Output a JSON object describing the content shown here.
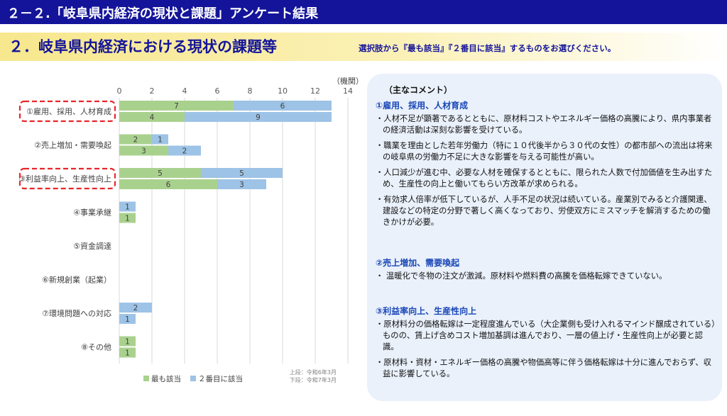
{
  "header": {
    "title": "２－２.「岐阜県内経済の現状と課題」アンケート結果",
    "subtitle": "２．岐阜県内経済における現状の課題等",
    "instruction": "選択肢から『最も該当』『２番目に該当』するものをお選びください。"
  },
  "chart_data": {
    "type": "bar",
    "orientation": "horizontal",
    "stacked": true,
    "unit_label": "（機関）",
    "xlim": [
      0,
      14
    ],
    "ticks": [
      0,
      2,
      4,
      6,
      8,
      10,
      12,
      14
    ],
    "categories": [
      "①雇用、採用、人材育成",
      "②売上増加・需要喚起",
      "③利益率向上、生産性向上",
      "④事業承継",
      "⑤資金調達",
      "⑥新規創業（起業）",
      "⑦環境問題への対応",
      "⑧その他"
    ],
    "highlighted": [
      0,
      2
    ],
    "series": [
      {
        "name": "最も該当",
        "color": "#a9d18e"
      },
      {
        "name": "２番目に該当",
        "color": "#9dc3e6"
      }
    ],
    "rows": {
      "upper_label": "上段：令和6年3月",
      "lower_label": "下段：令和7年3月",
      "upper": {
        "first": [
          7,
          2,
          5,
          0,
          0,
          0,
          0,
          1
        ],
        "second": [
          6,
          1,
          5,
          1,
          0,
          0,
          2,
          0
        ]
      },
      "lower": {
        "first": [
          4,
          3,
          6,
          1,
          0,
          0,
          0,
          1
        ],
        "second": [
          9,
          2,
          3,
          0,
          0,
          0,
          1,
          0
        ]
      }
    },
    "grid": true,
    "legend_position": "bottom"
  },
  "comments": {
    "heading": "（主なコメント）",
    "sections": [
      {
        "title": "①雇用、採用、人材育成",
        "items": [
          "・人材不足が顕著であるとともに、原材料コストやエネルギー価格の高騰により、県内事業者の経済活動は深刻な影響を受けている。",
          "・職業を理由とした若年労働力（特に１０代後半から３０代の女性）の都市部への流出は将来の岐阜県の労働力不足に大きな影響を与える可能性が高い。",
          "・人口減少が進む中、必要な人材を確保するとともに、限られた人数で付加価値を生み出すため、生産性の向上と働いてもらい方改革が求められる。",
          "・有効求人倍率が低下しているが、人手不足の状況は続いている。産業別でみると介護関連、建設などの特定の分野で著しく高くなっており、労使双方にミスマッチを解消するための働きかけが必要。"
        ]
      },
      {
        "title": "②売上増加、需要喚起",
        "items": [
          "・ 温暖化で冬物の注文が激減。原材料や燃料費の高騰を価格転嫁できていない。"
        ]
      },
      {
        "title": "③利益率向上、生産性向上",
        "items": [
          "・原材料分の価格転嫁は一定程度進んでいる（大企業側も受け入れるマインド醸成されている）ものの、賃上げ含めコスト増加基調は進んでおり、一層の値上げ・生産性向上が必要と認識。",
          "・原材料・資材・エネルギー価格の高騰や物価高等に伴う価格転嫁は十分に進んでおらず、収益に影響している。"
        ]
      }
    ]
  }
}
